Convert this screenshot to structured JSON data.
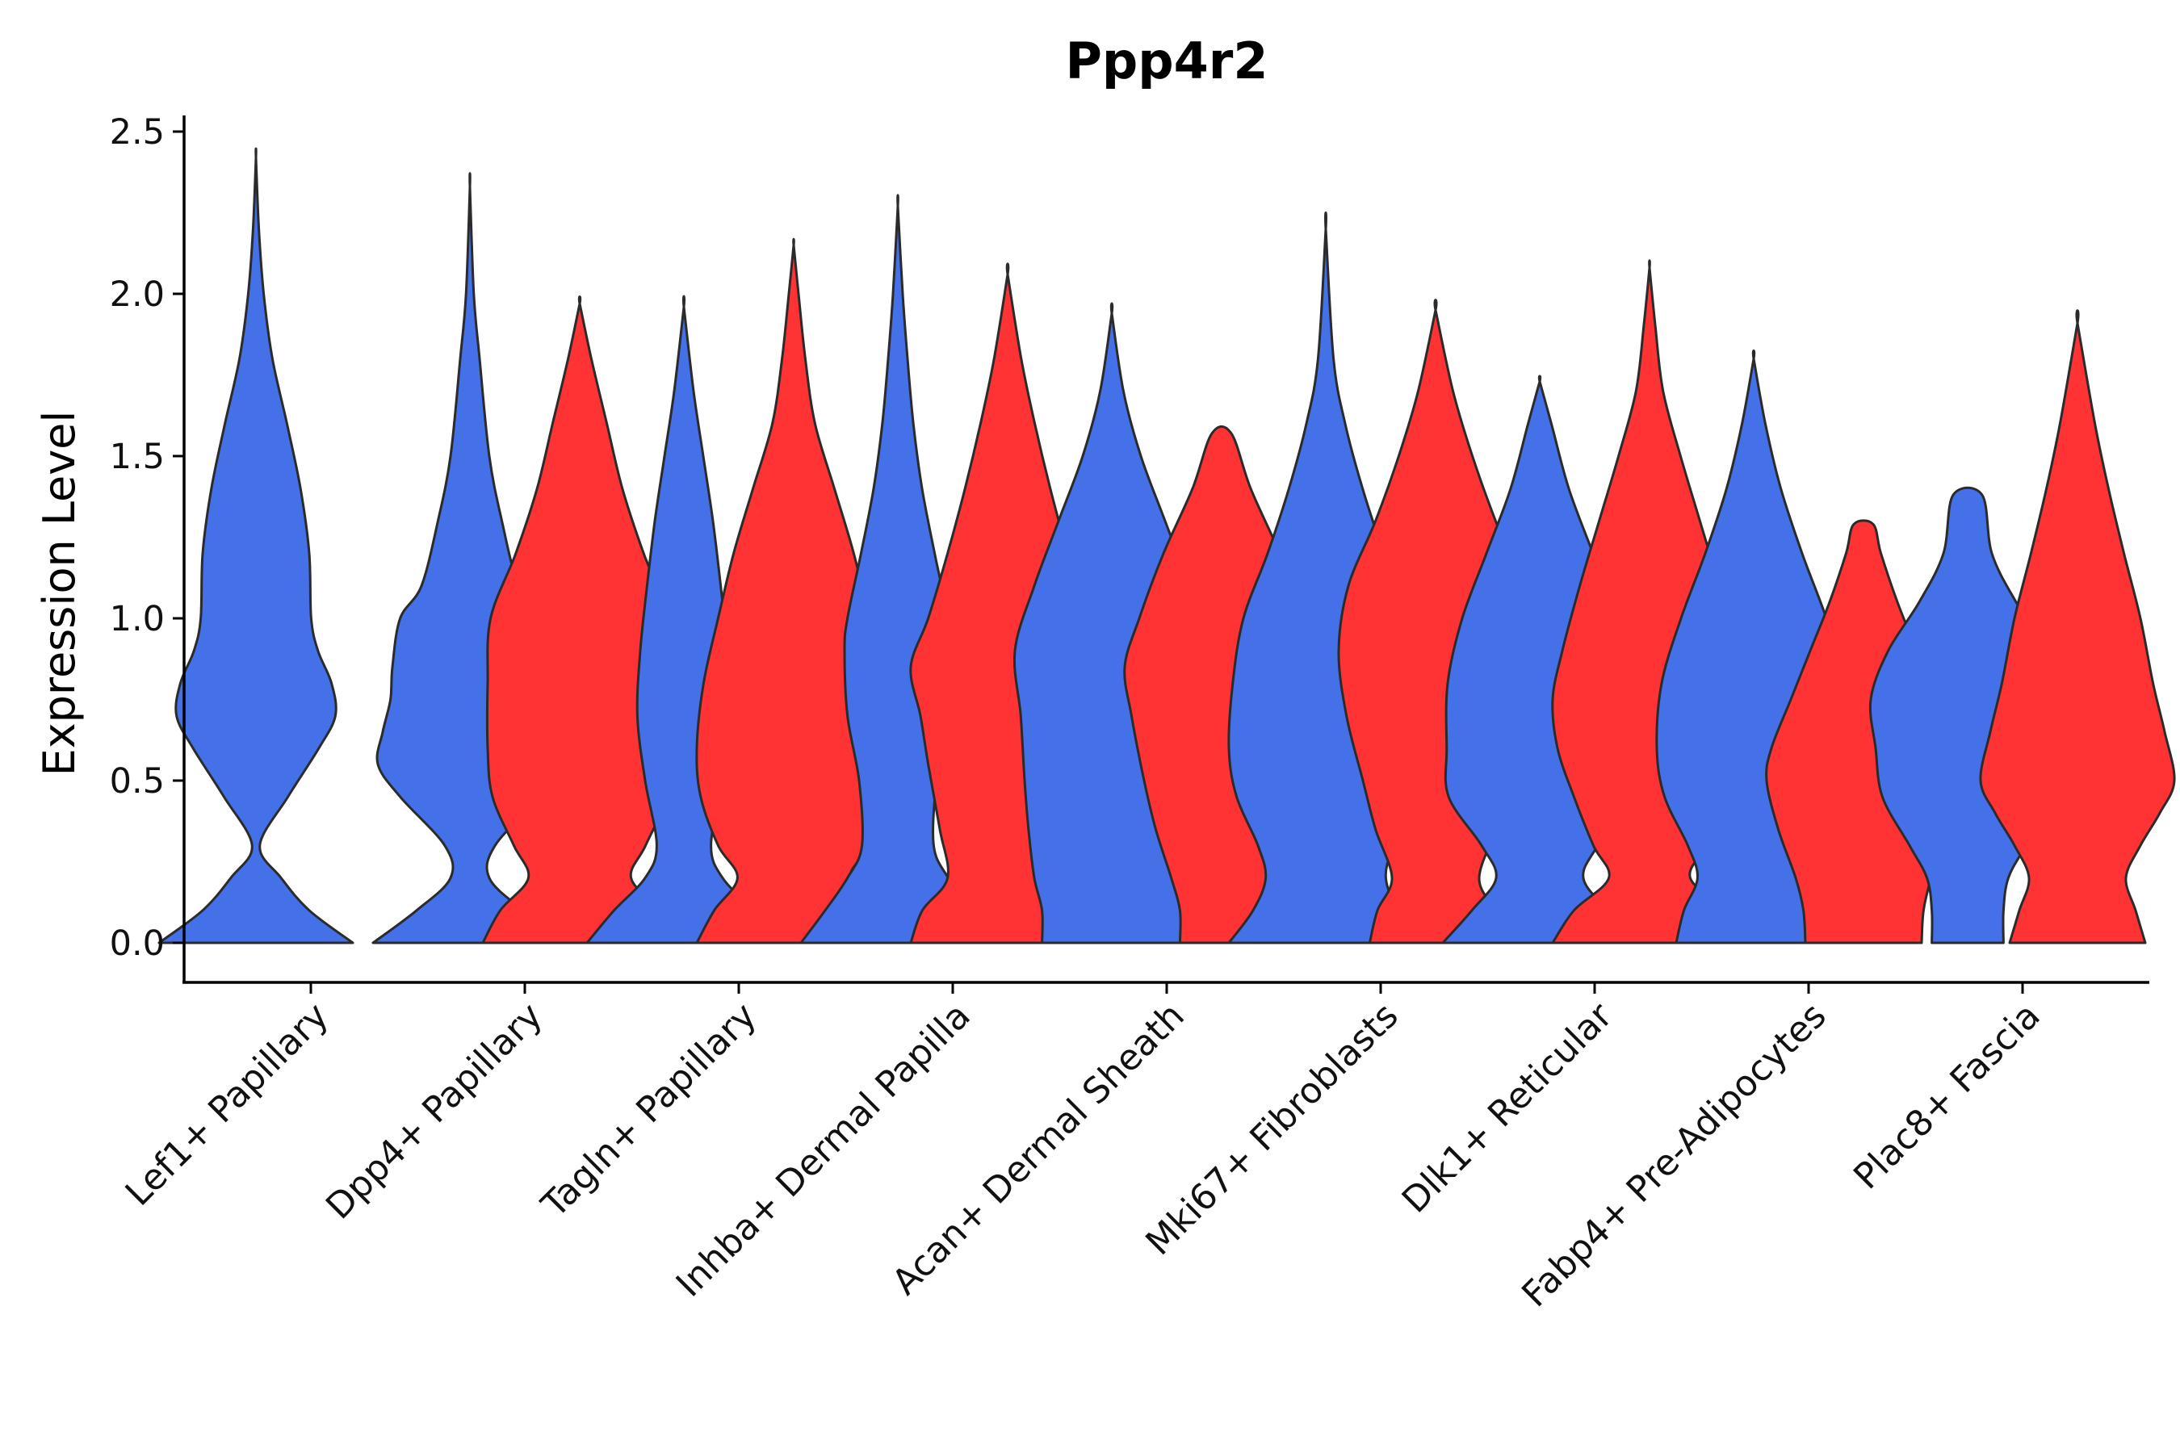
{
  "chart_data": {
    "type": "violin",
    "title": "Ppp4r2",
    "xlabel": "",
    "ylabel": "Expression Level",
    "ylim": [
      -0.12,
      2.55
    ],
    "yticks": [
      0.0,
      0.5,
      1.0,
      1.5,
      2.0,
      2.5
    ],
    "ytick_labels": [
      "0.0",
      "0.5",
      "1.0",
      "1.5",
      "2.0",
      "2.5"
    ],
    "grid": false,
    "legend": "none",
    "colors": {
      "group1": "#4470E8",
      "group2": "#FF3333",
      "outline": "#2b2b2b"
    },
    "categories": [
      "Lef1+ Papillary",
      "Dpp4+ Papillary",
      "Tagln+ Papillary",
      "Inhba+ Dermal Papilla",
      "Acan+ Dermal Sheath",
      "Mki67+ Fibroblasts",
      "Dlk1+ Reticular",
      "Fabp4+ Pre-Adipocytes",
      "Plac8+ Fascia"
    ],
    "violins": [
      {
        "category": "Lef1+ Papillary",
        "group": 1,
        "max": 2.42,
        "profile": [
          [
            0,
            1.0
          ],
          [
            0.1,
            0.55
          ],
          [
            0.2,
            0.26
          ],
          [
            0.3,
            0.04
          ],
          [
            0.45,
            0.33
          ],
          [
            0.6,
            0.65
          ],
          [
            0.7,
            0.82
          ],
          [
            0.8,
            0.78
          ],
          [
            0.9,
            0.64
          ],
          [
            1.0,
            0.57
          ],
          [
            1.2,
            0.55
          ],
          [
            1.4,
            0.46
          ],
          [
            1.6,
            0.32
          ],
          [
            1.8,
            0.17
          ],
          [
            2.0,
            0.08
          ],
          [
            2.2,
            0.03
          ],
          [
            2.42,
            0
          ]
        ]
      },
      {
        "category": "Dpp4+ Papillary",
        "group": 1,
        "max": 2.33,
        "profile": [
          [
            0,
            1.0
          ],
          [
            0.1,
            0.55
          ],
          [
            0.2,
            0.2
          ],
          [
            0.3,
            0.26
          ],
          [
            0.45,
            0.72
          ],
          [
            0.55,
            0.95
          ],
          [
            0.65,
            0.9
          ],
          [
            0.75,
            0.82
          ],
          [
            0.85,
            0.8
          ],
          [
            1.0,
            0.72
          ],
          [
            1.1,
            0.5
          ],
          [
            1.3,
            0.33
          ],
          [
            1.5,
            0.2
          ],
          [
            1.8,
            0.1
          ],
          [
            2.0,
            0.04
          ],
          [
            2.33,
            0
          ]
        ]
      },
      {
        "category": "Dpp4+ Papillary",
        "group": 2,
        "max": 1.97,
        "profile": [
          [
            0,
            1.0
          ],
          [
            0.1,
            0.82
          ],
          [
            0.2,
            0.53
          ],
          [
            0.3,
            0.68
          ],
          [
            0.45,
            0.9
          ],
          [
            0.6,
            0.95
          ],
          [
            0.8,
            0.95
          ],
          [
            1.0,
            0.92
          ],
          [
            1.2,
            0.66
          ],
          [
            1.4,
            0.44
          ],
          [
            1.6,
            0.28
          ],
          [
            1.8,
            0.12
          ],
          [
            1.97,
            0
          ]
        ]
      },
      {
        "category": "Tagln+ Papillary",
        "group": 1,
        "max": 1.96,
        "profile": [
          [
            0,
            1.0
          ],
          [
            0.1,
            0.72
          ],
          [
            0.2,
            0.4
          ],
          [
            0.3,
            0.28
          ],
          [
            0.5,
            0.4
          ],
          [
            0.7,
            0.48
          ],
          [
            0.9,
            0.45
          ],
          [
            1.1,
            0.38
          ],
          [
            1.3,
            0.3
          ],
          [
            1.5,
            0.2
          ],
          [
            1.7,
            0.1
          ],
          [
            1.96,
            0
          ]
        ]
      },
      {
        "category": "Tagln+ Papillary",
        "group": 2,
        "max": 2.15,
        "profile": [
          [
            0,
            1.0
          ],
          [
            0.1,
            0.82
          ],
          [
            0.2,
            0.58
          ],
          [
            0.3,
            0.78
          ],
          [
            0.45,
            0.96
          ],
          [
            0.6,
            1.0
          ],
          [
            0.8,
            0.93
          ],
          [
            1.0,
            0.78
          ],
          [
            1.2,
            0.62
          ],
          [
            1.4,
            0.42
          ],
          [
            1.6,
            0.22
          ],
          [
            1.8,
            0.12
          ],
          [
            2.0,
            0.05
          ],
          [
            2.15,
            0
          ]
        ]
      },
      {
        "category": "Inhba+ Dermal Papilla",
        "group": 1,
        "max": 2.27,
        "profile": [
          [
            0,
            1.0
          ],
          [
            0.1,
            0.75
          ],
          [
            0.2,
            0.52
          ],
          [
            0.3,
            0.37
          ],
          [
            0.5,
            0.4
          ],
          [
            0.7,
            0.52
          ],
          [
            0.9,
            0.55
          ],
          [
            1.0,
            0.52
          ],
          [
            1.2,
            0.38
          ],
          [
            1.4,
            0.25
          ],
          [
            1.6,
            0.16
          ],
          [
            1.8,
            0.1
          ],
          [
            2.0,
            0.05
          ],
          [
            2.27,
            0
          ]
        ]
      },
      {
        "category": "Inhba+ Dermal Papilla",
        "group": 2,
        "max": 2.06,
        "profile": [
          [
            0,
            1.0
          ],
          [
            0.1,
            0.88
          ],
          [
            0.2,
            0.62
          ],
          [
            0.35,
            0.7
          ],
          [
            0.55,
            0.82
          ],
          [
            0.7,
            0.9
          ],
          [
            0.85,
            1.0
          ],
          [
            1.0,
            0.82
          ],
          [
            1.2,
            0.62
          ],
          [
            1.4,
            0.44
          ],
          [
            1.6,
            0.28
          ],
          [
            1.8,
            0.14
          ],
          [
            2.06,
            0
          ]
        ]
      },
      {
        "category": "Acan+ Dermal Sheath",
        "group": 1,
        "max": 1.94,
        "profile": [
          [
            0,
            0.72
          ],
          [
            0.1,
            0.72
          ],
          [
            0.2,
            0.8
          ],
          [
            0.35,
            0.86
          ],
          [
            0.5,
            0.9
          ],
          [
            0.7,
            0.94
          ],
          [
            0.9,
            1.0
          ],
          [
            1.1,
            0.8
          ],
          [
            1.3,
            0.55
          ],
          [
            1.5,
            0.3
          ],
          [
            1.7,
            0.12
          ],
          [
            1.94,
            0
          ]
        ]
      },
      {
        "category": "Acan+ Dermal Sheath",
        "group": 2,
        "max": 1.57,
        "profile": [
          [
            0,
            0.43
          ],
          [
            0.1,
            0.43
          ],
          [
            0.2,
            0.52
          ],
          [
            0.35,
            0.68
          ],
          [
            0.5,
            0.8
          ],
          [
            0.7,
            0.93
          ],
          [
            0.85,
            1.0
          ],
          [
            1.0,
            0.85
          ],
          [
            1.2,
            0.6
          ],
          [
            1.4,
            0.3
          ],
          [
            1.57,
            0.1
          ]
        ]
      },
      {
        "category": "Mki67+ Fibroblasts",
        "group": 1,
        "max": 2.2,
        "profile": [
          [
            0,
            1.0
          ],
          [
            0.1,
            0.75
          ],
          [
            0.2,
            0.62
          ],
          [
            0.3,
            0.7
          ],
          [
            0.45,
            0.92
          ],
          [
            0.6,
            1.0
          ],
          [
            0.8,
            0.96
          ],
          [
            1.0,
            0.85
          ],
          [
            1.2,
            0.6
          ],
          [
            1.4,
            0.38
          ],
          [
            1.6,
            0.2
          ],
          [
            1.8,
            0.08
          ],
          [
            2.2,
            0
          ]
        ]
      },
      {
        "category": "Mki67+ Fibroblasts",
        "group": 2,
        "max": 1.95,
        "profile": [
          [
            0,
            0.68
          ],
          [
            0.1,
            0.6
          ],
          [
            0.2,
            0.45
          ],
          [
            0.35,
            0.62
          ],
          [
            0.5,
            0.75
          ],
          [
            0.7,
            0.92
          ],
          [
            0.9,
            1.0
          ],
          [
            1.1,
            0.9
          ],
          [
            1.3,
            0.62
          ],
          [
            1.5,
            0.38
          ],
          [
            1.7,
            0.18
          ],
          [
            1.95,
            0
          ]
        ]
      },
      {
        "category": "Dlk1+ Reticular",
        "group": 1,
        "max": 1.73,
        "profile": [
          [
            0,
            1.0
          ],
          [
            0.1,
            0.7
          ],
          [
            0.2,
            0.45
          ],
          [
            0.3,
            0.6
          ],
          [
            0.45,
            0.94
          ],
          [
            0.6,
            0.96
          ],
          [
            0.8,
            0.95
          ],
          [
            1.0,
            0.8
          ],
          [
            1.2,
            0.55
          ],
          [
            1.4,
            0.3
          ],
          [
            1.6,
            0.12
          ],
          [
            1.73,
            0
          ]
        ]
      },
      {
        "category": "Dlk1+ Reticular",
        "group": 2,
        "max": 2.08,
        "profile": [
          [
            0,
            1.0
          ],
          [
            0.1,
            0.78
          ],
          [
            0.2,
            0.42
          ],
          [
            0.3,
            0.58
          ],
          [
            0.45,
            0.78
          ],
          [
            0.6,
            0.95
          ],
          [
            0.75,
            1.0
          ],
          [
            0.9,
            0.9
          ],
          [
            1.1,
            0.72
          ],
          [
            1.3,
            0.52
          ],
          [
            1.5,
            0.32
          ],
          [
            1.7,
            0.14
          ],
          [
            1.9,
            0.06
          ],
          [
            2.08,
            0
          ]
        ]
      },
      {
        "category": "Fabp4+ Pre-Adipocytes",
        "group": 1,
        "max": 1.8,
        "profile": [
          [
            0,
            0.8
          ],
          [
            0.1,
            0.72
          ],
          [
            0.2,
            0.58
          ],
          [
            0.3,
            0.68
          ],
          [
            0.45,
            0.92
          ],
          [
            0.6,
            1.0
          ],
          [
            0.8,
            0.95
          ],
          [
            1.0,
            0.75
          ],
          [
            1.2,
            0.5
          ],
          [
            1.4,
            0.28
          ],
          [
            1.6,
            0.12
          ],
          [
            1.8,
            0
          ]
        ]
      },
      {
        "category": "Fabp4+ Pre-Adipocytes",
        "group": 2,
        "max": 1.29,
        "profile": [
          [
            0,
            0.6
          ],
          [
            0.1,
            0.62
          ],
          [
            0.2,
            0.7
          ],
          [
            0.35,
            0.88
          ],
          [
            0.5,
            1.0
          ],
          [
            0.6,
            0.95
          ],
          [
            0.75,
            0.75
          ],
          [
            0.9,
            0.55
          ],
          [
            1.05,
            0.35
          ],
          [
            1.2,
            0.18
          ],
          [
            1.29,
            0.1
          ]
        ]
      },
      {
        "category": "Plac8+ Fascia",
        "group": 1,
        "max": 1.38,
        "profile": [
          [
            0,
            0.37
          ],
          [
            0.1,
            0.37
          ],
          [
            0.2,
            0.42
          ],
          [
            0.3,
            0.6
          ],
          [
            0.45,
            0.88
          ],
          [
            0.6,
            0.95
          ],
          [
            0.75,
            1.0
          ],
          [
            0.9,
            0.82
          ],
          [
            1.05,
            0.5
          ],
          [
            1.2,
            0.25
          ],
          [
            1.38,
            0.15
          ]
        ]
      },
      {
        "category": "Plac8+ Fascia",
        "group": 2,
        "max": 1.91,
        "profile": [
          [
            0,
            0.7
          ],
          [
            0.1,
            0.6
          ],
          [
            0.2,
            0.5
          ],
          [
            0.3,
            0.65
          ],
          [
            0.4,
            0.85
          ],
          [
            0.5,
            1.0
          ],
          [
            0.65,
            0.9
          ],
          [
            0.8,
            0.78
          ],
          [
            1.0,
            0.65
          ],
          [
            1.2,
            0.48
          ],
          [
            1.4,
            0.32
          ],
          [
            1.6,
            0.18
          ],
          [
            1.91,
            0
          ]
        ]
      }
    ]
  }
}
